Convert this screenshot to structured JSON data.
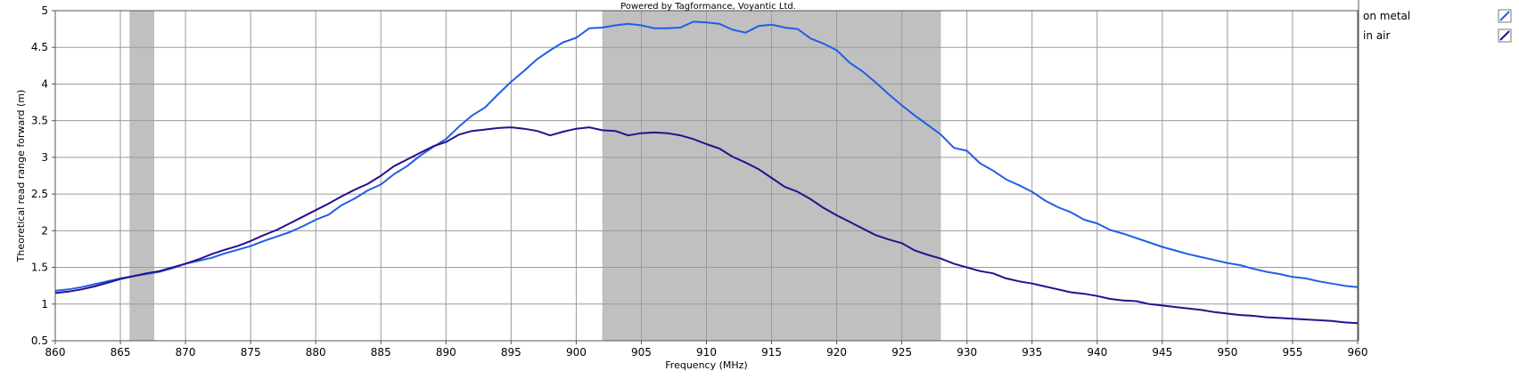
{
  "credit": "Powered by Tagformance, Voyantic Ltd.",
  "chart_data": {
    "type": "line",
    "xlabel": "Frequency (MHz)",
    "ylabel": "Theoretical read range forward (m)",
    "xlim": [
      860,
      960
    ],
    "ylim": [
      0.5,
      5
    ],
    "xticks": [
      860,
      865,
      870,
      875,
      880,
      885,
      890,
      895,
      900,
      905,
      910,
      915,
      920,
      925,
      930,
      935,
      940,
      945,
      950,
      955,
      960
    ],
    "yticks": [
      "0.5",
      "1",
      "1.5",
      "2",
      "2.5",
      "3",
      "3.5",
      "4",
      "4.5",
      "5"
    ],
    "grid": true,
    "legend_position": "right",
    "shaded_bands": [
      [
        865.7,
        867.6
      ],
      [
        902,
        928
      ]
    ],
    "band_color": "#c0c0c0",
    "series": [
      {
        "name": "on metal",
        "color": "#1f5fe6",
        "x": [
          860,
          861,
          862,
          863,
          864,
          865,
          866,
          867,
          868,
          869,
          870,
          871,
          872,
          873,
          874,
          875,
          876,
          877,
          878,
          879,
          880,
          881,
          882,
          883,
          884,
          885,
          886,
          887,
          888,
          889,
          890,
          891,
          892,
          893,
          894,
          895,
          896,
          897,
          898,
          899,
          900,
          901,
          902,
          903,
          904,
          905,
          906,
          907,
          908,
          909,
          910,
          911,
          912,
          913,
          914,
          915,
          916,
          917,
          918,
          919,
          920,
          921,
          922,
          923,
          924,
          925,
          926,
          927,
          928,
          929,
          930,
          931,
          932,
          933,
          934,
          935,
          936,
          937,
          938,
          939,
          940,
          941,
          942,
          943,
          944,
          945,
          946,
          947,
          948,
          949,
          950,
          951,
          952,
          953,
          954,
          955,
          956,
          957,
          958,
          959,
          960
        ],
        "values": [
          1.18,
          1.2,
          1.23,
          1.27,
          1.31,
          1.35,
          1.38,
          1.41,
          1.44,
          1.49,
          1.55,
          1.59,
          1.63,
          1.69,
          1.74,
          1.79,
          1.86,
          1.92,
          1.98,
          2.06,
          2.15,
          2.22,
          2.35,
          2.44,
          2.55,
          2.63,
          2.77,
          2.88,
          3.02,
          3.14,
          3.25,
          3.42,
          3.57,
          3.68,
          3.86,
          4.03,
          4.18,
          4.34,
          4.46,
          4.57,
          4.63,
          4.76,
          4.77,
          4.8,
          4.82,
          4.8,
          4.76,
          4.76,
          4.77,
          4.85,
          4.84,
          4.82,
          4.74,
          4.7,
          4.79,
          4.81,
          4.77,
          4.75,
          4.62,
          4.55,
          4.46,
          4.29,
          4.17,
          4.02,
          3.86,
          3.71,
          3.57,
          3.44,
          3.31,
          3.13,
          3.09,
          2.92,
          2.82,
          2.7,
          2.62,
          2.53,
          2.41,
          2.32,
          2.25,
          2.15,
          2.1,
          2.01,
          1.96,
          1.9,
          1.84,
          1.78,
          1.73,
          1.68,
          1.64,
          1.6,
          1.56,
          1.53,
          1.48,
          1.44,
          1.41,
          1.37,
          1.35,
          1.31,
          1.28,
          1.25,
          1.23
        ]
      },
      {
        "name": "in air",
        "color": "#2a0e8c",
        "x": [
          860,
          861,
          862,
          863,
          864,
          865,
          866,
          867,
          868,
          869,
          870,
          871,
          872,
          873,
          874,
          875,
          876,
          877,
          878,
          879,
          880,
          881,
          882,
          883,
          884,
          885,
          886,
          887,
          888,
          889,
          890,
          891,
          892,
          893,
          894,
          895,
          896,
          897,
          898,
          899,
          900,
          901,
          902,
          903,
          904,
          905,
          906,
          907,
          908,
          909,
          910,
          911,
          912,
          913,
          914,
          915,
          916,
          917,
          918,
          919,
          920,
          921,
          922,
          923,
          924,
          925,
          926,
          927,
          928,
          929,
          930,
          931,
          932,
          933,
          934,
          935,
          936,
          937,
          938,
          939,
          940,
          941,
          942,
          943,
          944,
          945,
          946,
          947,
          948,
          949,
          950,
          951,
          952,
          953,
          954,
          955,
          956,
          957,
          958,
          959,
          960
        ],
        "values": [
          1.15,
          1.17,
          1.2,
          1.24,
          1.29,
          1.34,
          1.38,
          1.42,
          1.45,
          1.5,
          1.55,
          1.61,
          1.68,
          1.74,
          1.79,
          1.86,
          1.94,
          2.01,
          2.1,
          2.19,
          2.28,
          2.37,
          2.47,
          2.56,
          2.64,
          2.75,
          2.88,
          2.97,
          3.06,
          3.15,
          3.21,
          3.31,
          3.36,
          3.38,
          3.4,
          3.41,
          3.39,
          3.36,
          3.3,
          3.35,
          3.39,
          3.41,
          3.37,
          3.36,
          3.3,
          3.33,
          3.34,
          3.33,
          3.3,
          3.25,
          3.18,
          3.12,
          3.01,
          2.93,
          2.84,
          2.72,
          2.6,
          2.53,
          2.43,
          2.31,
          2.21,
          2.12,
          2.03,
          1.94,
          1.88,
          1.83,
          1.73,
          1.67,
          1.62,
          1.55,
          1.5,
          1.45,
          1.42,
          1.35,
          1.31,
          1.28,
          1.24,
          1.2,
          1.16,
          1.14,
          1.11,
          1.07,
          1.05,
          1.04,
          1.0,
          0.98,
          0.96,
          0.94,
          0.92,
          0.89,
          0.87,
          0.85,
          0.84,
          0.82,
          0.81,
          0.8,
          0.79,
          0.78,
          0.77,
          0.75,
          0.74
        ]
      }
    ]
  }
}
